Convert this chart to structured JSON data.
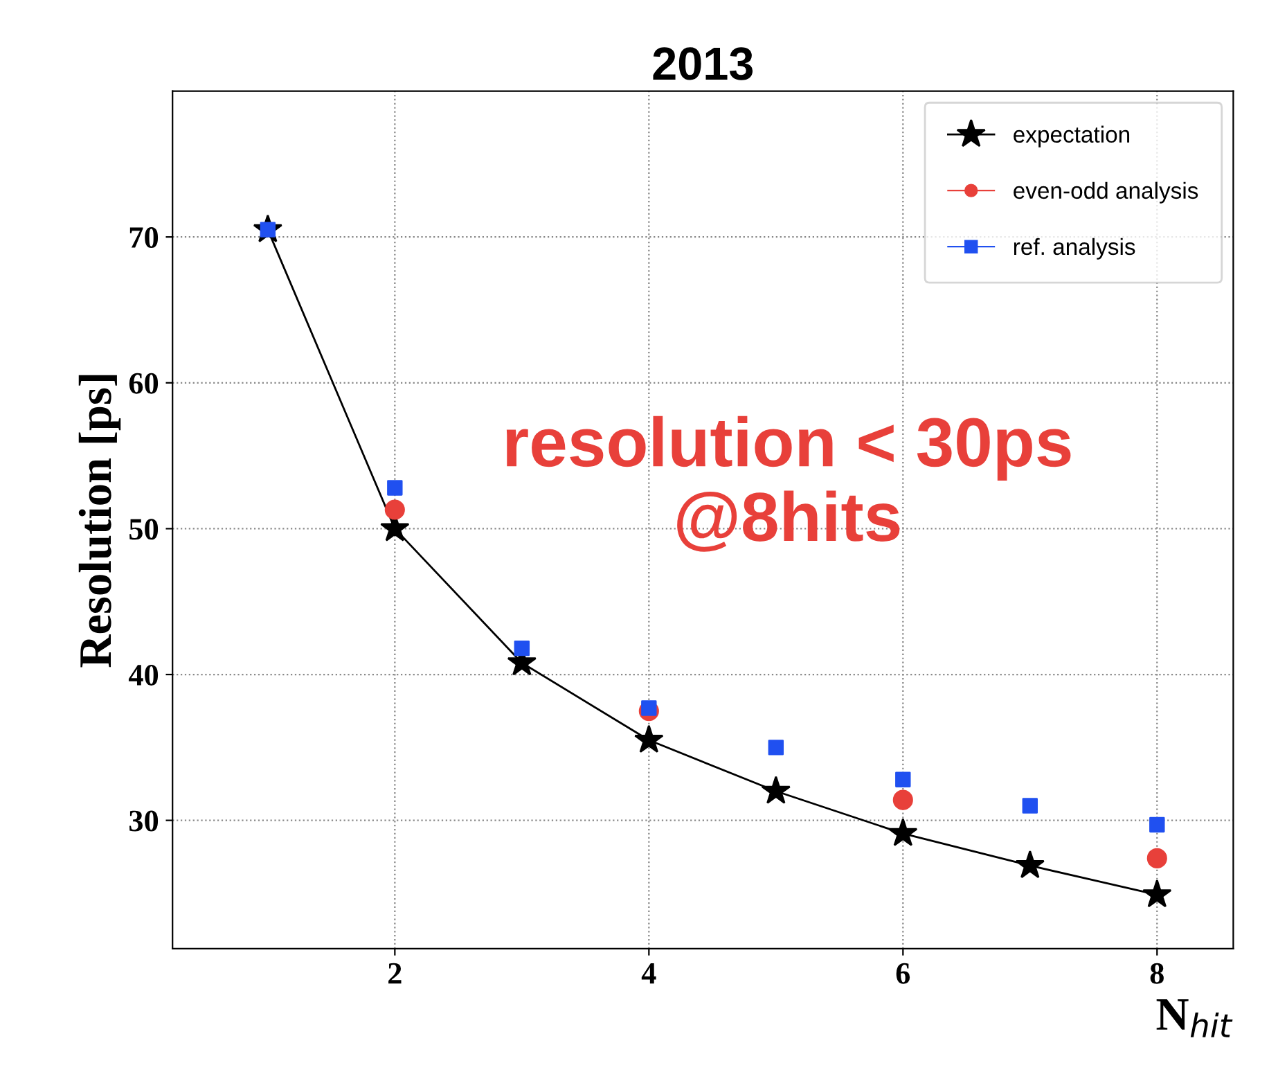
{
  "chart_data": {
    "type": "line",
    "title": "2013",
    "xlabel": "N$_{hit}$",
    "ylabel": "Resolution [ps]",
    "x": [
      1,
      2,
      3,
      4,
      5,
      6,
      7,
      8
    ],
    "series": [
      {
        "name": "expectation",
        "color": "#000000",
        "marker": "star",
        "line_style": "solid",
        "values": [
          70.5,
          50.0,
          40.8,
          35.5,
          32.0,
          29.1,
          26.9,
          24.9
        ]
      },
      {
        "name": "even-odd analysis",
        "type": "scatter",
        "color": "#e8403a",
        "marker": "circle",
        "values": [
          null,
          51.3,
          null,
          37.5,
          null,
          31.4,
          null,
          27.4
        ]
      },
      {
        "name": "ref. analysis",
        "type": "scatter",
        "color": "#2050f0",
        "marker": "square",
        "values": [
          70.5,
          52.8,
          41.8,
          37.7,
          35.0,
          32.8,
          31.0,
          29.7
        ]
      }
    ],
    "xlim": [
      0.25,
      8.6
    ],
    "ylim": [
      21.2,
      80
    ],
    "xticks": [
      2,
      4,
      6,
      8
    ],
    "yticks": [
      30,
      40,
      50,
      60,
      70
    ],
    "grid": true,
    "legend": "top right",
    "annotations": [
      {
        "text": "resolution < 30ps\n@8hits"
      }
    ]
  }
}
